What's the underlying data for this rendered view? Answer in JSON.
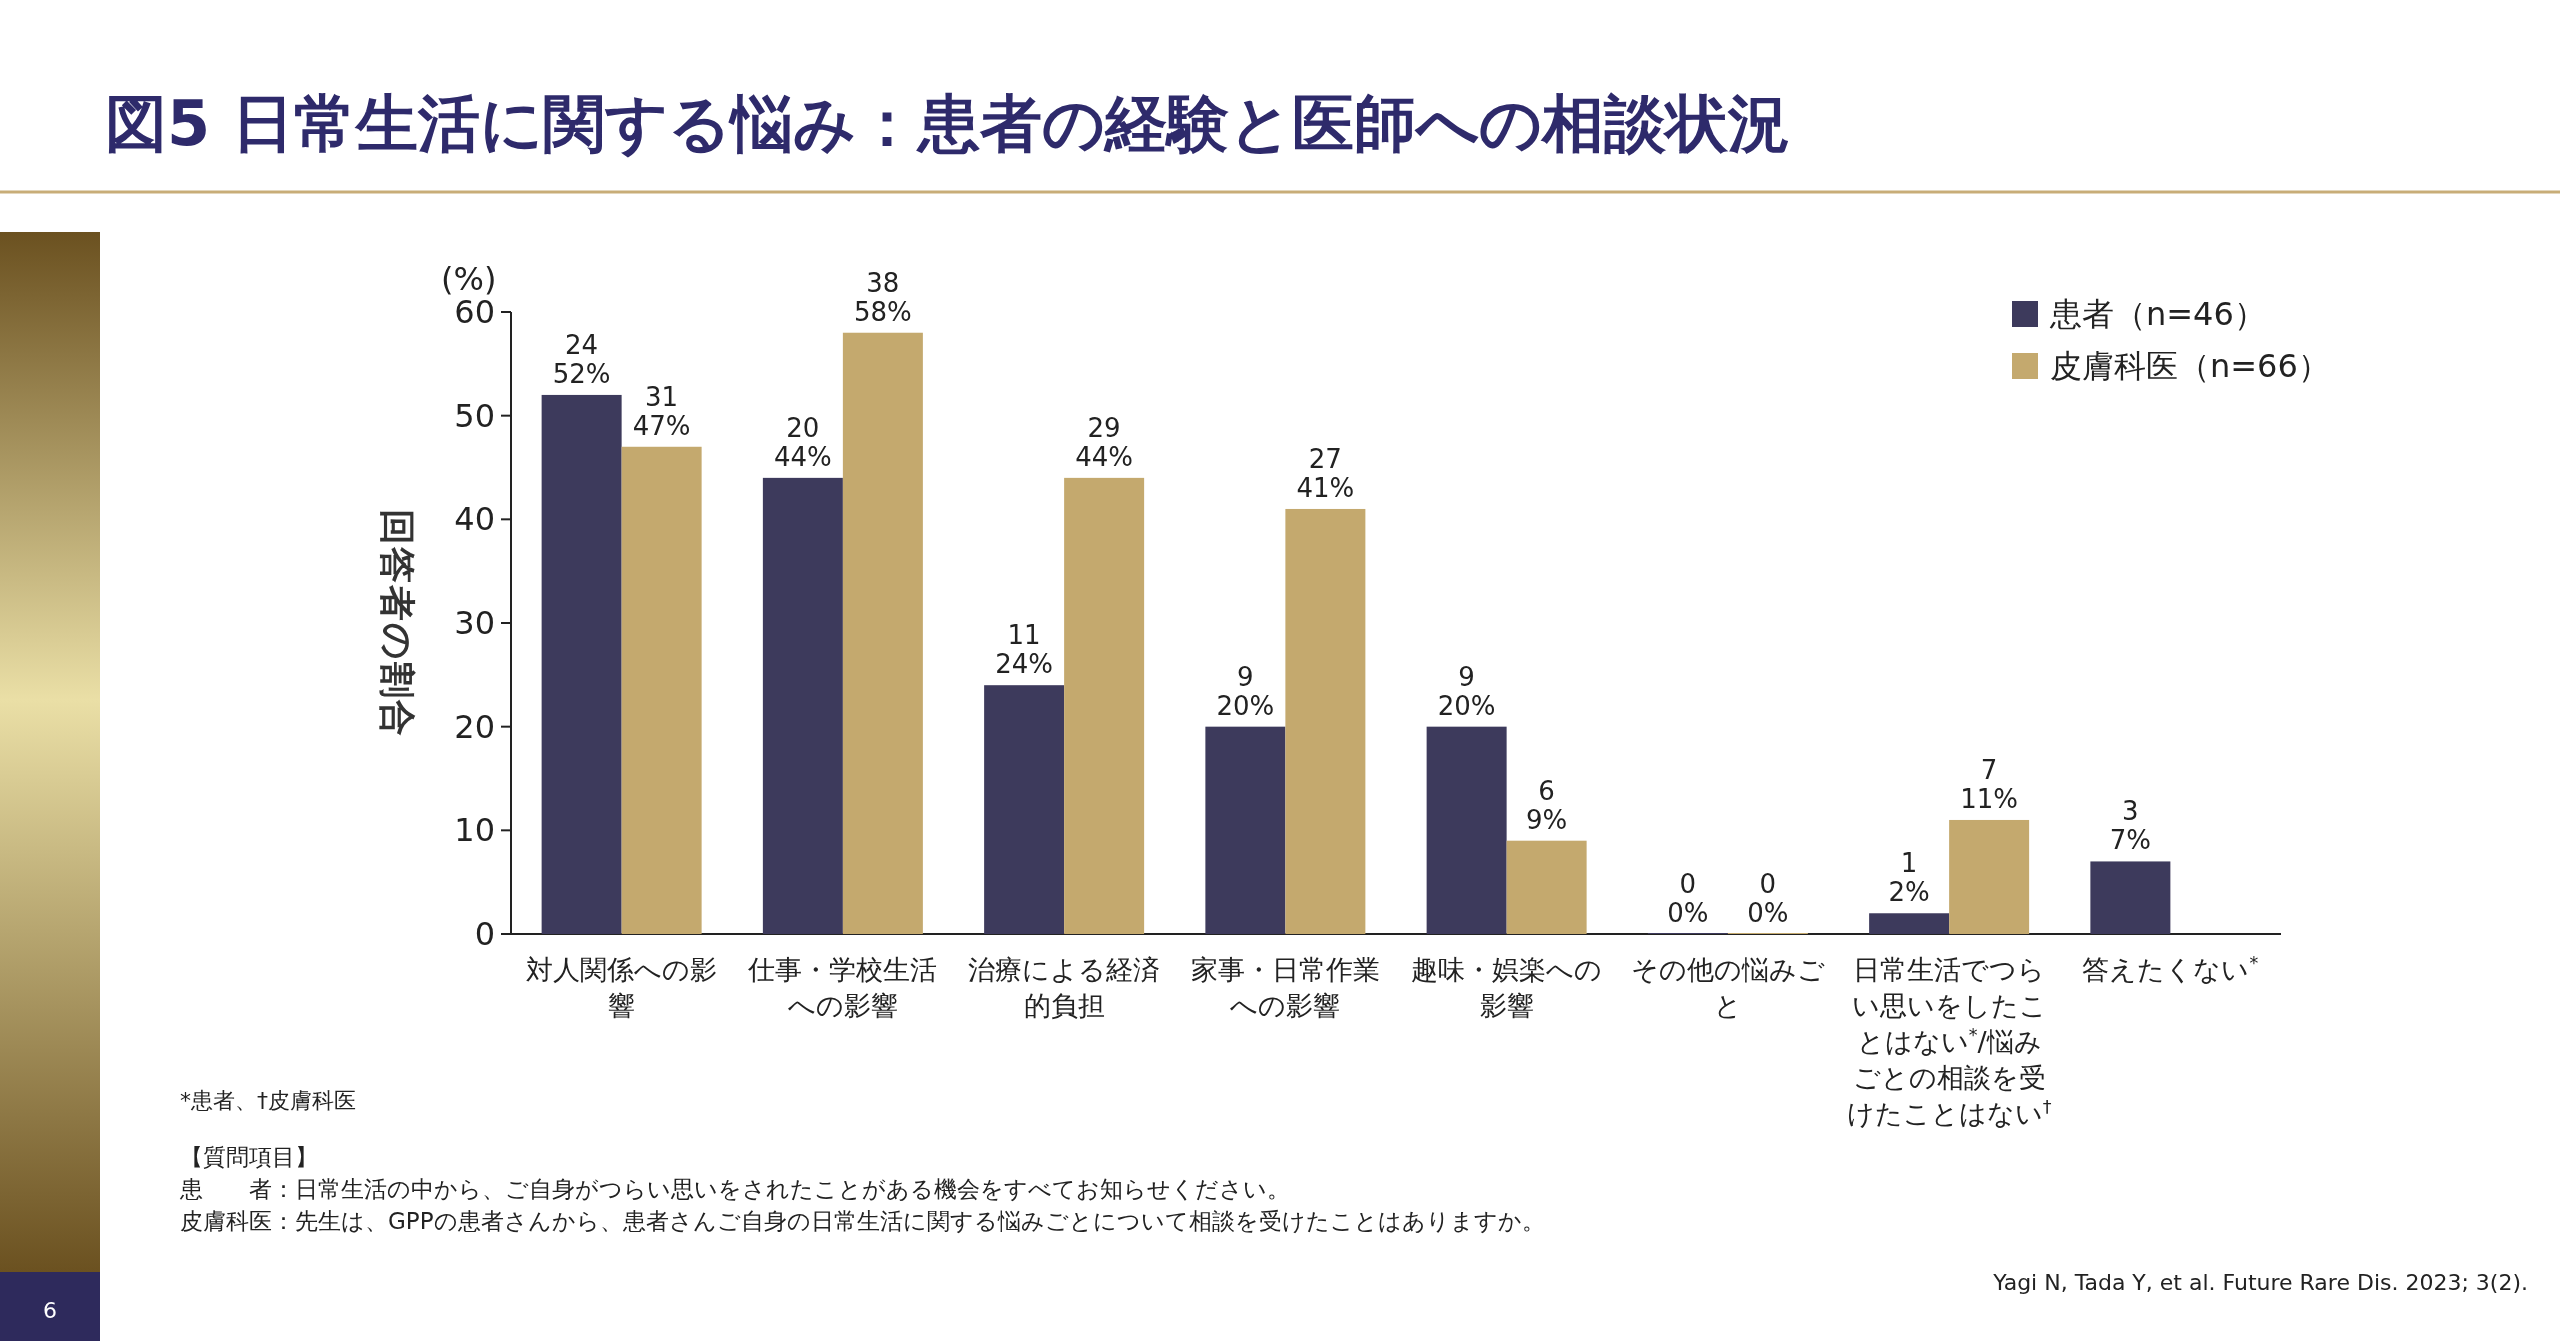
{
  "chart_data": {
    "type": "bar",
    "title": "図5 日常生活に関する悩み：患者の経験と医師への相談状況",
    "ylabel": "回答者の割合",
    "categories": [
      "対人関係への影響",
      "仕事・学校生活への影響",
      "治療による経済的負担",
      "家事・日常作業への影響",
      "趣味・娯楽への影響",
      "その他の悩みごと",
      "日常生活でつらい思いをしたことはない$^{*}$/悩みごとの相談を受けたことはない$^{†}$",
      "答えたくない$^{*}$"
    ],
    "series": [
      {
        "name": "患者（n=46）",
        "color": "#3d3a5c",
        "values": [
          52,
          44,
          24,
          20,
          20,
          0,
          2,
          7
        ],
        "value_labels": [
          "24\n52%",
          "20\n44%",
          "11\n24%",
          "9\n20%",
          "9\n20%",
          "0\n0%",
          "1\n2%",
          "3\n7%"
        ]
      },
      {
        "name": "皮膚科医（n=66）",
        "color": "#c4a96e",
        "values": [
          47,
          58,
          44,
          41,
          9,
          0,
          11,
          null
        ],
        "value_labels": [
          "31\n47%",
          "38\n58%",
          "29\n44%",
          "27\n41%",
          "6\n9%",
          "0\n0%",
          "7\n11%",
          null
        ]
      }
    ],
    "ylim": [
      0,
      60
    ],
    "yticks": [
      0,
      10,
      20,
      30,
      40,
      50,
      60
    ],
    "legend": "top right",
    "annotations": [
      "(%)",
      "*患者、†皮膚科医",
      "【質問項目】",
      "患　　者：日常生活の中から、ご自身がつらい思いをされたことがある機会をすべてお知らせください。",
      "皮膚科医：先生は、GPPの患者さんから、患者さんご自身の日常生活に関する悩みごとについて相談を受けたことはありますか。",
      "Yagi N, Tada Y, et al. Future Rare Dis. 2023; 3(2).",
      "6"
    ]
  }
}
